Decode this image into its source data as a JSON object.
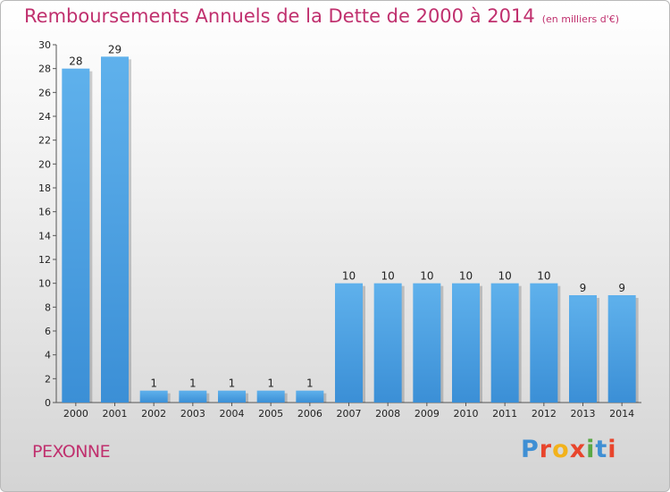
{
  "chart_data": {
    "type": "bar",
    "title": "Remboursements Annuels de la Dette de 2000 à 2014",
    "unit": "(en milliers d'€)",
    "categories": [
      "2000",
      "2001",
      "2002",
      "2003",
      "2004",
      "2005",
      "2006",
      "2007",
      "2008",
      "2009",
      "2010",
      "2011",
      "2012",
      "2013",
      "2014"
    ],
    "values": [
      28,
      29,
      1,
      1,
      1,
      1,
      1,
      10,
      10,
      10,
      10,
      10,
      10,
      9,
      9
    ],
    "ylim": [
      0,
      30
    ],
    "yticks": [
      0,
      2,
      4,
      6,
      8,
      10,
      12,
      14,
      16,
      18,
      20,
      22,
      24,
      26,
      28,
      30
    ],
    "bar_color": "#3b8fd6",
    "grid": false
  },
  "place_name": "PEXONNE",
  "logo": {
    "text": "Proxiti",
    "letter_colors": [
      "#3f8fd4",
      "#e8452c",
      "#f2b21b",
      "#e8452c",
      "#5aa845",
      "#3f8fd4",
      "#e8452c"
    ]
  },
  "title_color": "#c0306e"
}
